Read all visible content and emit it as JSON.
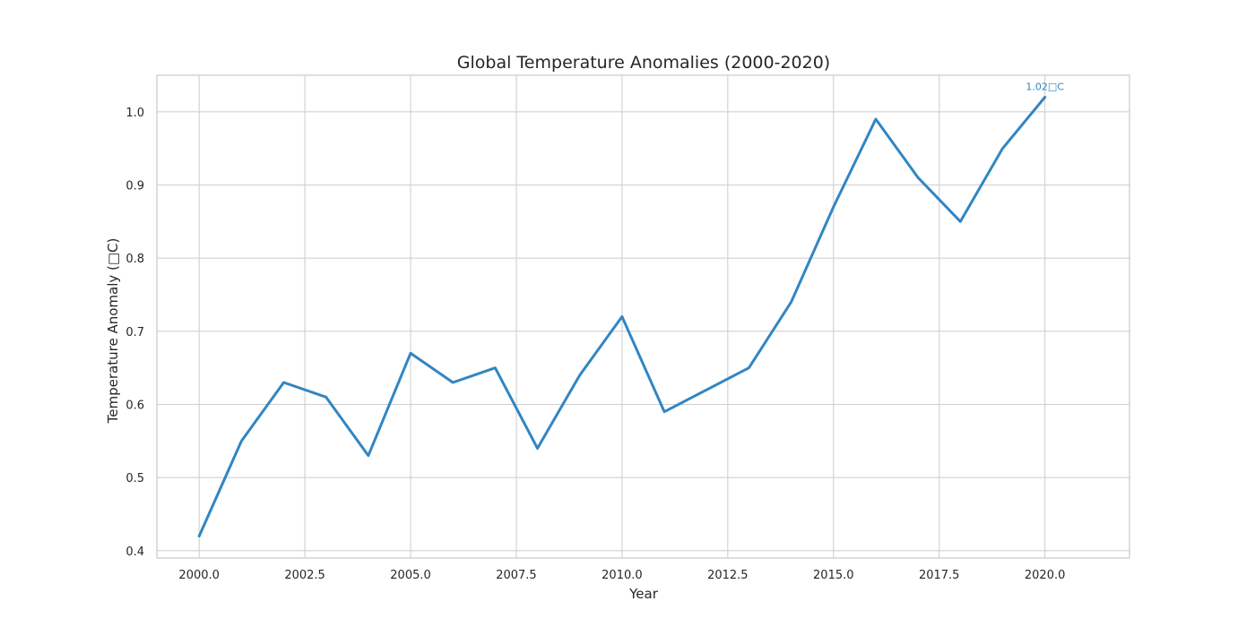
{
  "chart_data": {
    "type": "line",
    "title": "Global Temperature Anomalies (2000-2020)",
    "xlabel": "Year",
    "ylabel": "Temperature Anomaly (□C)",
    "xlim": [
      1999.0,
      2022.0
    ],
    "ylim": [
      0.39,
      1.05
    ],
    "xticks": [
      2000.0,
      2002.5,
      2005.0,
      2007.5,
      2010.0,
      2012.5,
      2015.0,
      2017.5,
      2020.0
    ],
    "xtick_labels": [
      "2000.0",
      "2002.5",
      "2005.0",
      "2007.5",
      "2010.0",
      "2012.5",
      "2015.0",
      "2017.5",
      "2020.0"
    ],
    "yticks": [
      0.4,
      0.5,
      0.6,
      0.7,
      0.8,
      0.9,
      1.0
    ],
    "ytick_labels": [
      "0.4",
      "0.5",
      "0.6",
      "0.7",
      "0.8",
      "0.9",
      "1.0"
    ],
    "grid": true,
    "series": [
      {
        "x": [
          2000,
          2001,
          2002,
          2003,
          2004,
          2005,
          2006,
          2007,
          2008,
          2009,
          2010,
          2011,
          2012,
          2013,
          2014,
          2015,
          2016,
          2017,
          2018,
          2019,
          2020
        ],
        "values": [
          0.42,
          0.55,
          0.63,
          0.61,
          0.53,
          0.67,
          0.63,
          0.65,
          0.54,
          0.64,
          0.72,
          0.59,
          0.62,
          0.65,
          0.74,
          0.87,
          0.99,
          0.91,
          0.85,
          0.95,
          1.02
        ],
        "color": "#3186c3"
      }
    ],
    "annotations": [
      {
        "text": "1.02□C",
        "x": 2020,
        "y": 1.02,
        "color": "#3186c3"
      }
    ]
  }
}
